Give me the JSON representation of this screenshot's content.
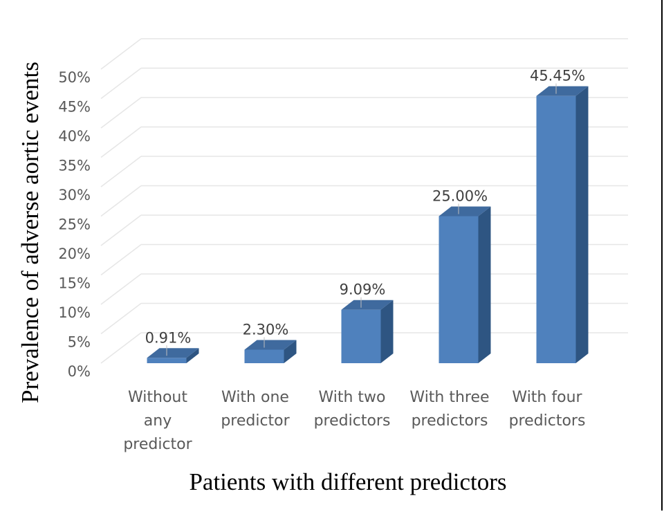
{
  "chart_data": {
    "type": "bar",
    "style": "3d-column",
    "categories": [
      [
        "Without",
        "any",
        "predictor"
      ],
      [
        "With one",
        "predictor"
      ],
      [
        "With two",
        "predictors"
      ],
      [
        "With three",
        "predictors"
      ],
      [
        "With four",
        "predictors"
      ]
    ],
    "values": [
      0.91,
      2.3,
      9.09,
      25.0,
      45.45
    ],
    "data_labels": [
      "0.91%",
      "2.30%",
      "9.09%",
      "25.00%",
      "45.45%"
    ],
    "xlabel": "Patients with different predictors",
    "ylabel": "Prevalence of adverse aortic events",
    "ylim": [
      0,
      50
    ],
    "yticks": [
      "0%",
      "5%",
      "10%",
      "15%",
      "20%",
      "25%",
      "30%",
      "35%",
      "40%",
      "45%",
      "50%"
    ],
    "grid": true,
    "colors": {
      "front": "#4f81bd",
      "side": "#2e5582",
      "top": "#3f6a9e",
      "grid": "#e6e6e6"
    }
  }
}
